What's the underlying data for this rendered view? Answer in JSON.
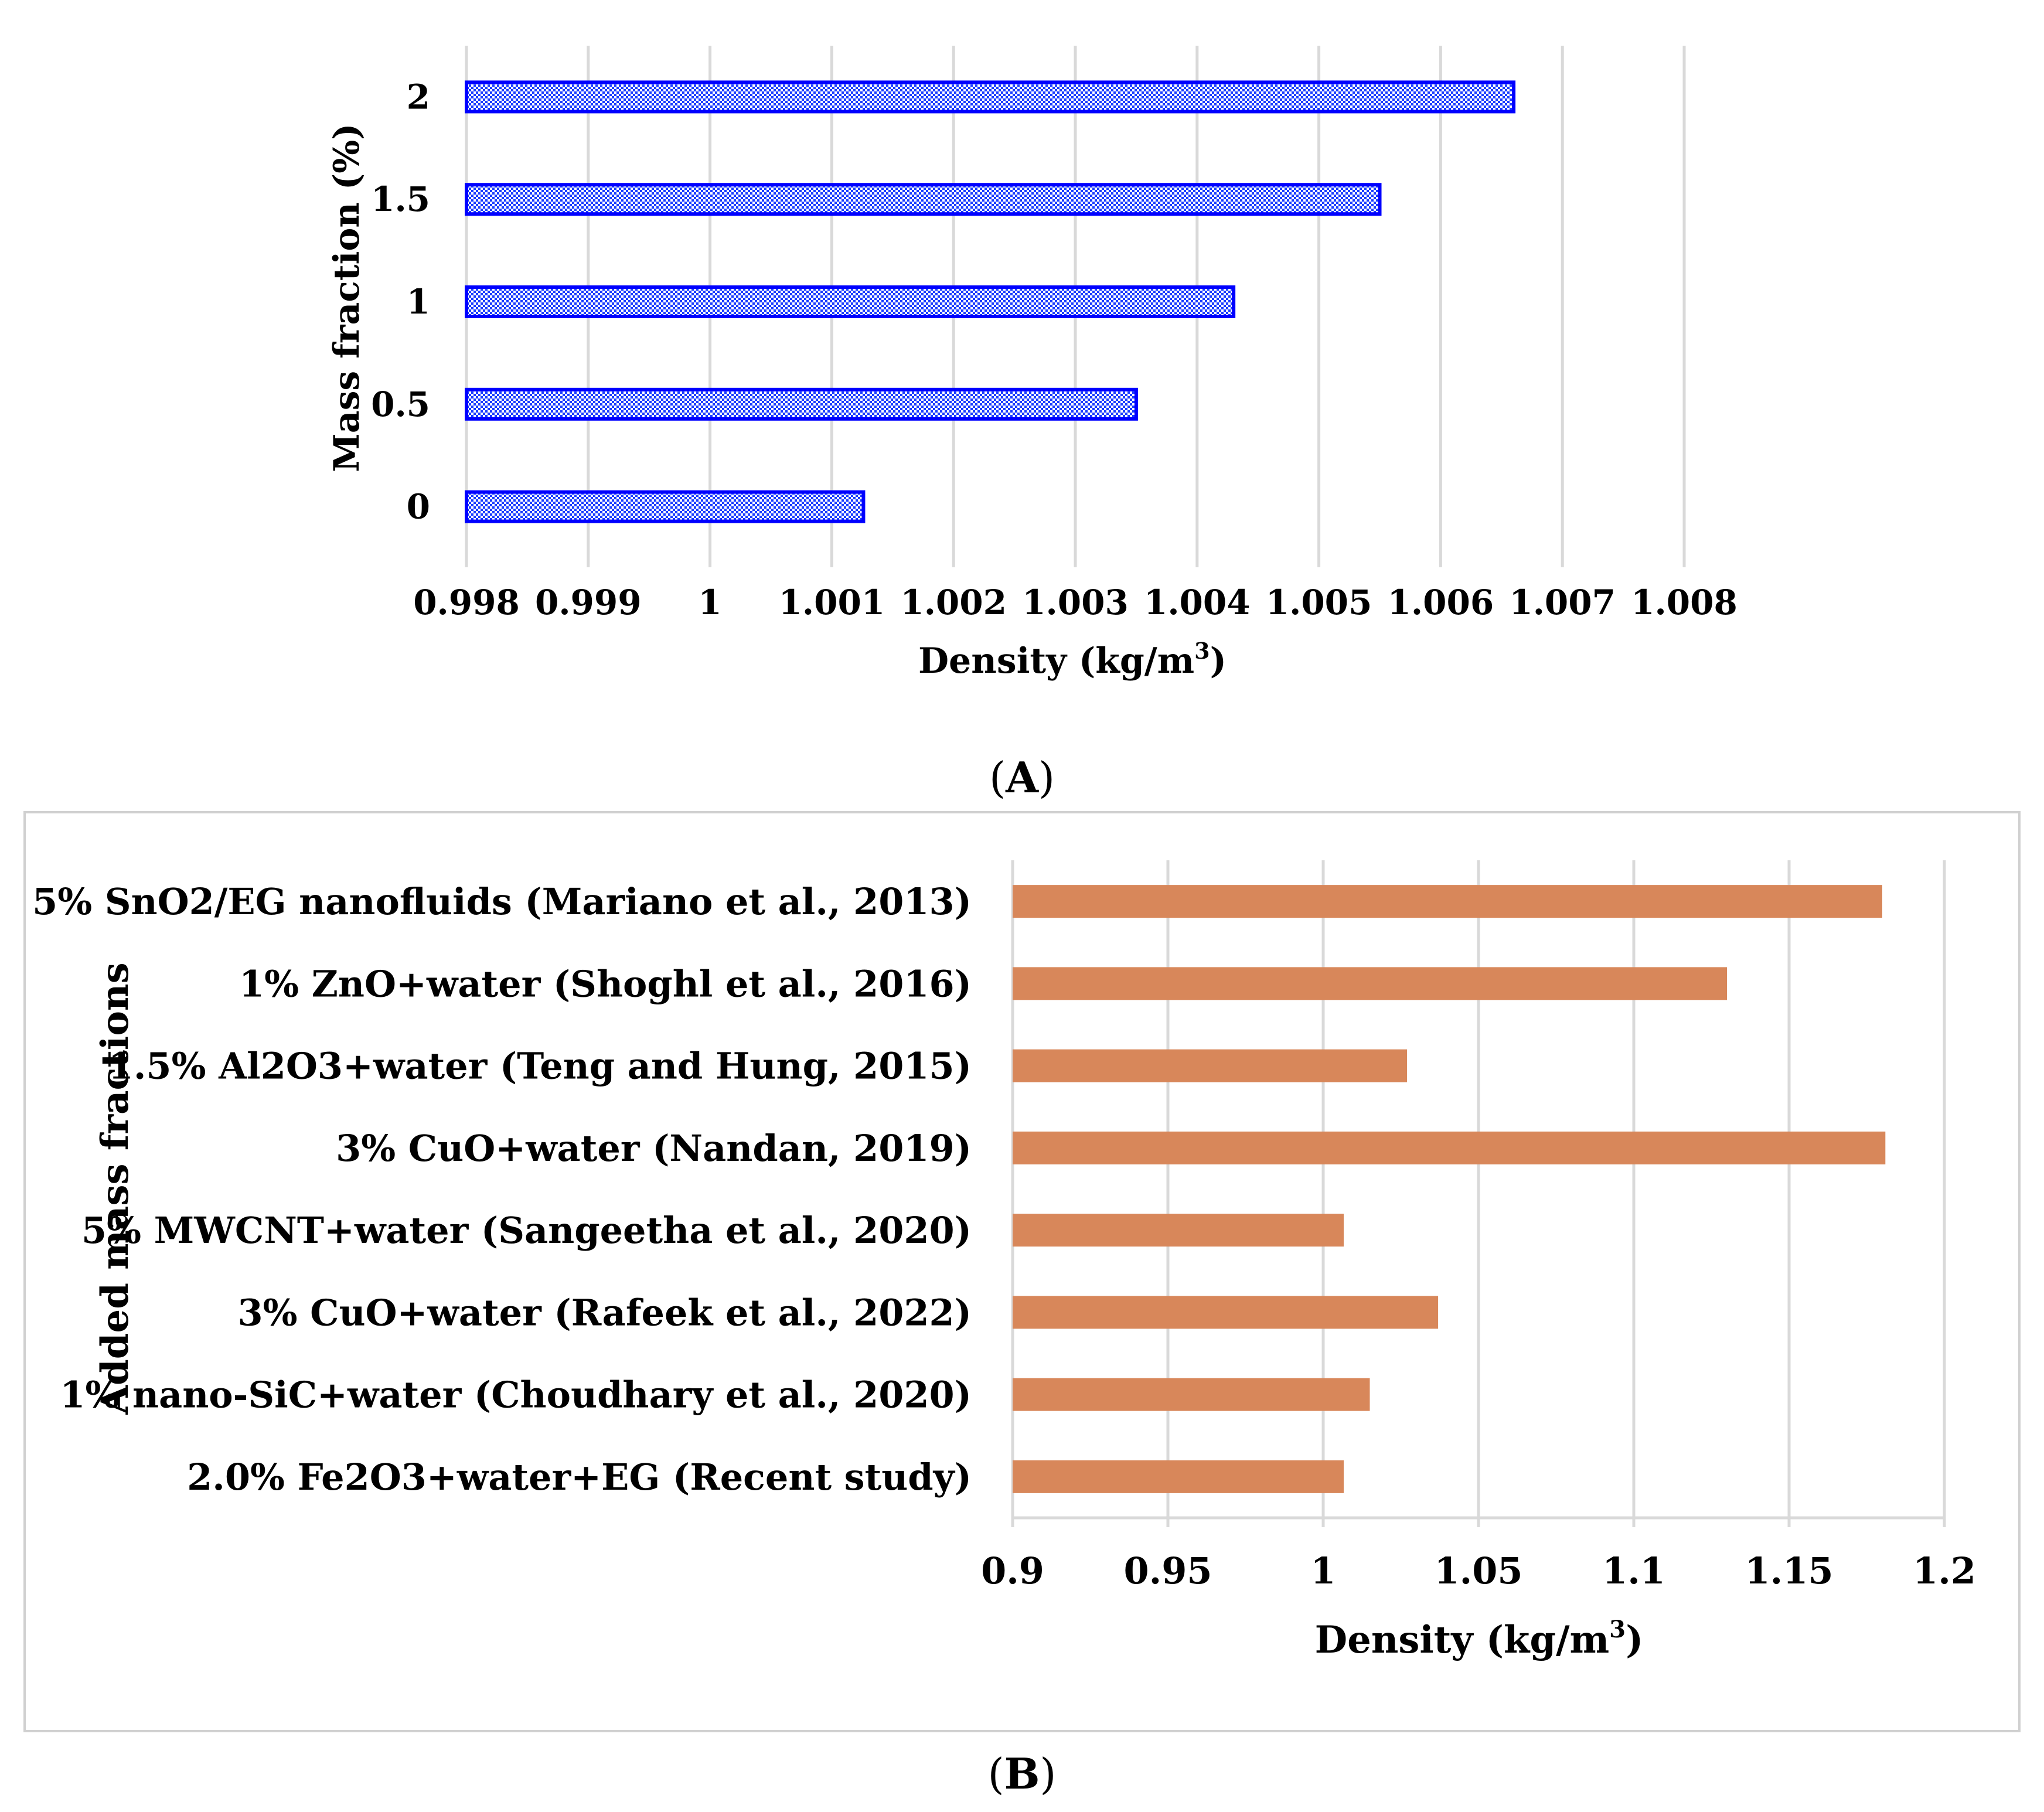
{
  "chart_data": [
    {
      "type": "bar",
      "orientation": "horizontal",
      "panel": "A",
      "categories": [
        "0",
        "0.5",
        "1",
        "1.5",
        "2"
      ],
      "values": [
        1.00126,
        1.0035,
        1.0043,
        1.0055,
        1.0066
      ],
      "xlabel": "Density (kg/m",
      "xlabel_sup": "3",
      "xlabel_end": ")",
      "ylabel": "Mass fraction (%)",
      "xlim": [
        0.998,
        1.008
      ],
      "xticks": [
        "0.998",
        "0.999",
        "1",
        "1.001",
        "1.002",
        "1.003",
        "1.004",
        "1.005",
        "1.006",
        "1.007",
        "1.008"
      ],
      "grid": true,
      "bar_color": "#0000ff",
      "bar_fill": "hatched"
    },
    {
      "type": "bar",
      "orientation": "horizontal",
      "panel": "B",
      "categories": [
        "2.0% Fe2O3+water+EG (Recent study)",
        "1% nano-SiC+water (Choudhary et al., 2020)",
        "3% CuO+water (Rafeek et al., 2022)",
        "5% MWCNT+water (Sangeetha et al., 2020)",
        "3% CuO+water (Nandan, 2019)",
        "1.5% Al2O3+water (Teng and Hung, 2015)",
        "1% ZnO+water (Shoghl et al., 2016)",
        "5% SnO2/EG nanofluids (Mariano et al., 2013)"
      ],
      "values": [
        1.0066,
        1.015,
        1.037,
        1.0066,
        1.181,
        1.027,
        1.13,
        1.18
      ],
      "xlabel": "Density (kg/m",
      "xlabel_sup": "3",
      "xlabel_end": ")",
      "ylabel": "Added mass fractions",
      "xlim": [
        0.9,
        1.2
      ],
      "xticks": [
        "0.9",
        "0.95",
        "1",
        "1.05",
        "1.1",
        "1.15",
        "1.2"
      ],
      "grid": true,
      "bar_color": "#d8875a"
    }
  ],
  "labels": {
    "panel_a": "(A)",
    "panel_b": "(B)"
  }
}
